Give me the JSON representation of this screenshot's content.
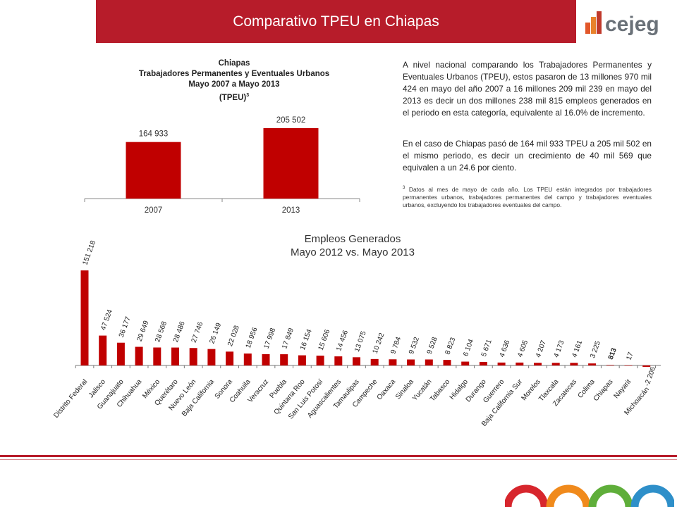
{
  "header": {
    "title": "Comparativo TPEU en Chiapas",
    "logo_text": "cejeg"
  },
  "chart_top": {
    "title_lines": [
      "Chiapas",
      "Trabajadores Permanentes y Eventuales Urbanos",
      "Mayo 2007 a Mayo 2013"
    ],
    "title_last": "(TPEU)",
    "title_sup": "3"
  },
  "text": {
    "para1": "A nivel nacional comparando los Trabajadores Permanentes y Eventuales Urbanos (TPEU), estos pasaron de 13 millones 970 mil 424 en mayo del año 2007 a 16 millones 209 mil 239 en mayo del 2013 es decir un dos millones 238 mil 815 empleos generados en el periodo en esta categoría, equivalente al 16.0% de incremento.",
    "para2": "En el caso de Chiapas pasó de 164 mil 933 TPEU a 205 mil 502 en el mismo periodo, es decir un crecimiento de 40 mil 569 que equivalen a un 24.6 por ciento.",
    "footnote_sup": "3",
    "footnote": " Datos al mes de mayo de cada año. Los TPEU están integrados por trabajadores permanentes urbanos, trabajadores permanentes del campo y trabajadores eventuales urbanos, excluyendo los trabajadores eventuales del campo."
  },
  "chart_bottom": {
    "title_line1": "Empleos Generados",
    "title_line2": "Mayo 2012  vs. Mayo 2013"
  },
  "colors": {
    "bar": "#c00000",
    "header": "#b71c2a"
  },
  "chart_data": [
    {
      "type": "bar",
      "categories": [
        "2007",
        "2013"
      ],
      "values": [
        164933,
        205502
      ],
      "labels": [
        "164 933",
        "205 502"
      ],
      "ylim": [
        0,
        230000
      ]
    },
    {
      "type": "bar",
      "categories": [
        "Distrito Federal",
        "Jalisco",
        "Guanajuato",
        "Chihuahua",
        "México",
        "Querétaro",
        "Nuevo León",
        "Baja California",
        "Sonora",
        "Coahuila",
        "Veracruz",
        "Puebla",
        "Quintana Roo",
        "San Luis Potosí",
        "Aguascalientes",
        "Tamaulipas",
        "Campeche",
        "Oaxaca",
        "Sinaloa",
        "Yucatán",
        "Tabasco",
        "Hidalgo",
        "Durango",
        "Guerrero",
        "Baja California Sur",
        "Morelos",
        "Tlaxcala",
        "Zacatecas",
        "Colima",
        "Chiapas",
        "Nayarit",
        "Michoacán"
      ],
      "values": [
        151218,
        47524,
        36177,
        29649,
        28568,
        28486,
        27746,
        26149,
        22028,
        18956,
        17998,
        17849,
        16154,
        15606,
        14456,
        13075,
        10242,
        9784,
        9532,
        9528,
        8823,
        6104,
        5671,
        4636,
        4605,
        4207,
        4173,
        4161,
        3225,
        813,
        17,
        -2206
      ],
      "labels": [
        "151 218",
        "47 524",
        "36 177",
        "29 649",
        "28 568",
        "28 486",
        "27 746",
        "26 149",
        "22 028",
        "18 956",
        "17 998",
        "17 849",
        "16 154",
        "15 606",
        "14 456",
        "13 075",
        "10 242",
        "9 784",
        "9 532",
        "9 528",
        "8 823",
        "6 104",
        "5 671",
        "4 636",
        "4 605",
        "4 207",
        "4 173",
        "4 161",
        "3 225",
        "813",
        "17",
        "-2 206"
      ],
      "highlight": "Chiapas"
    }
  ]
}
